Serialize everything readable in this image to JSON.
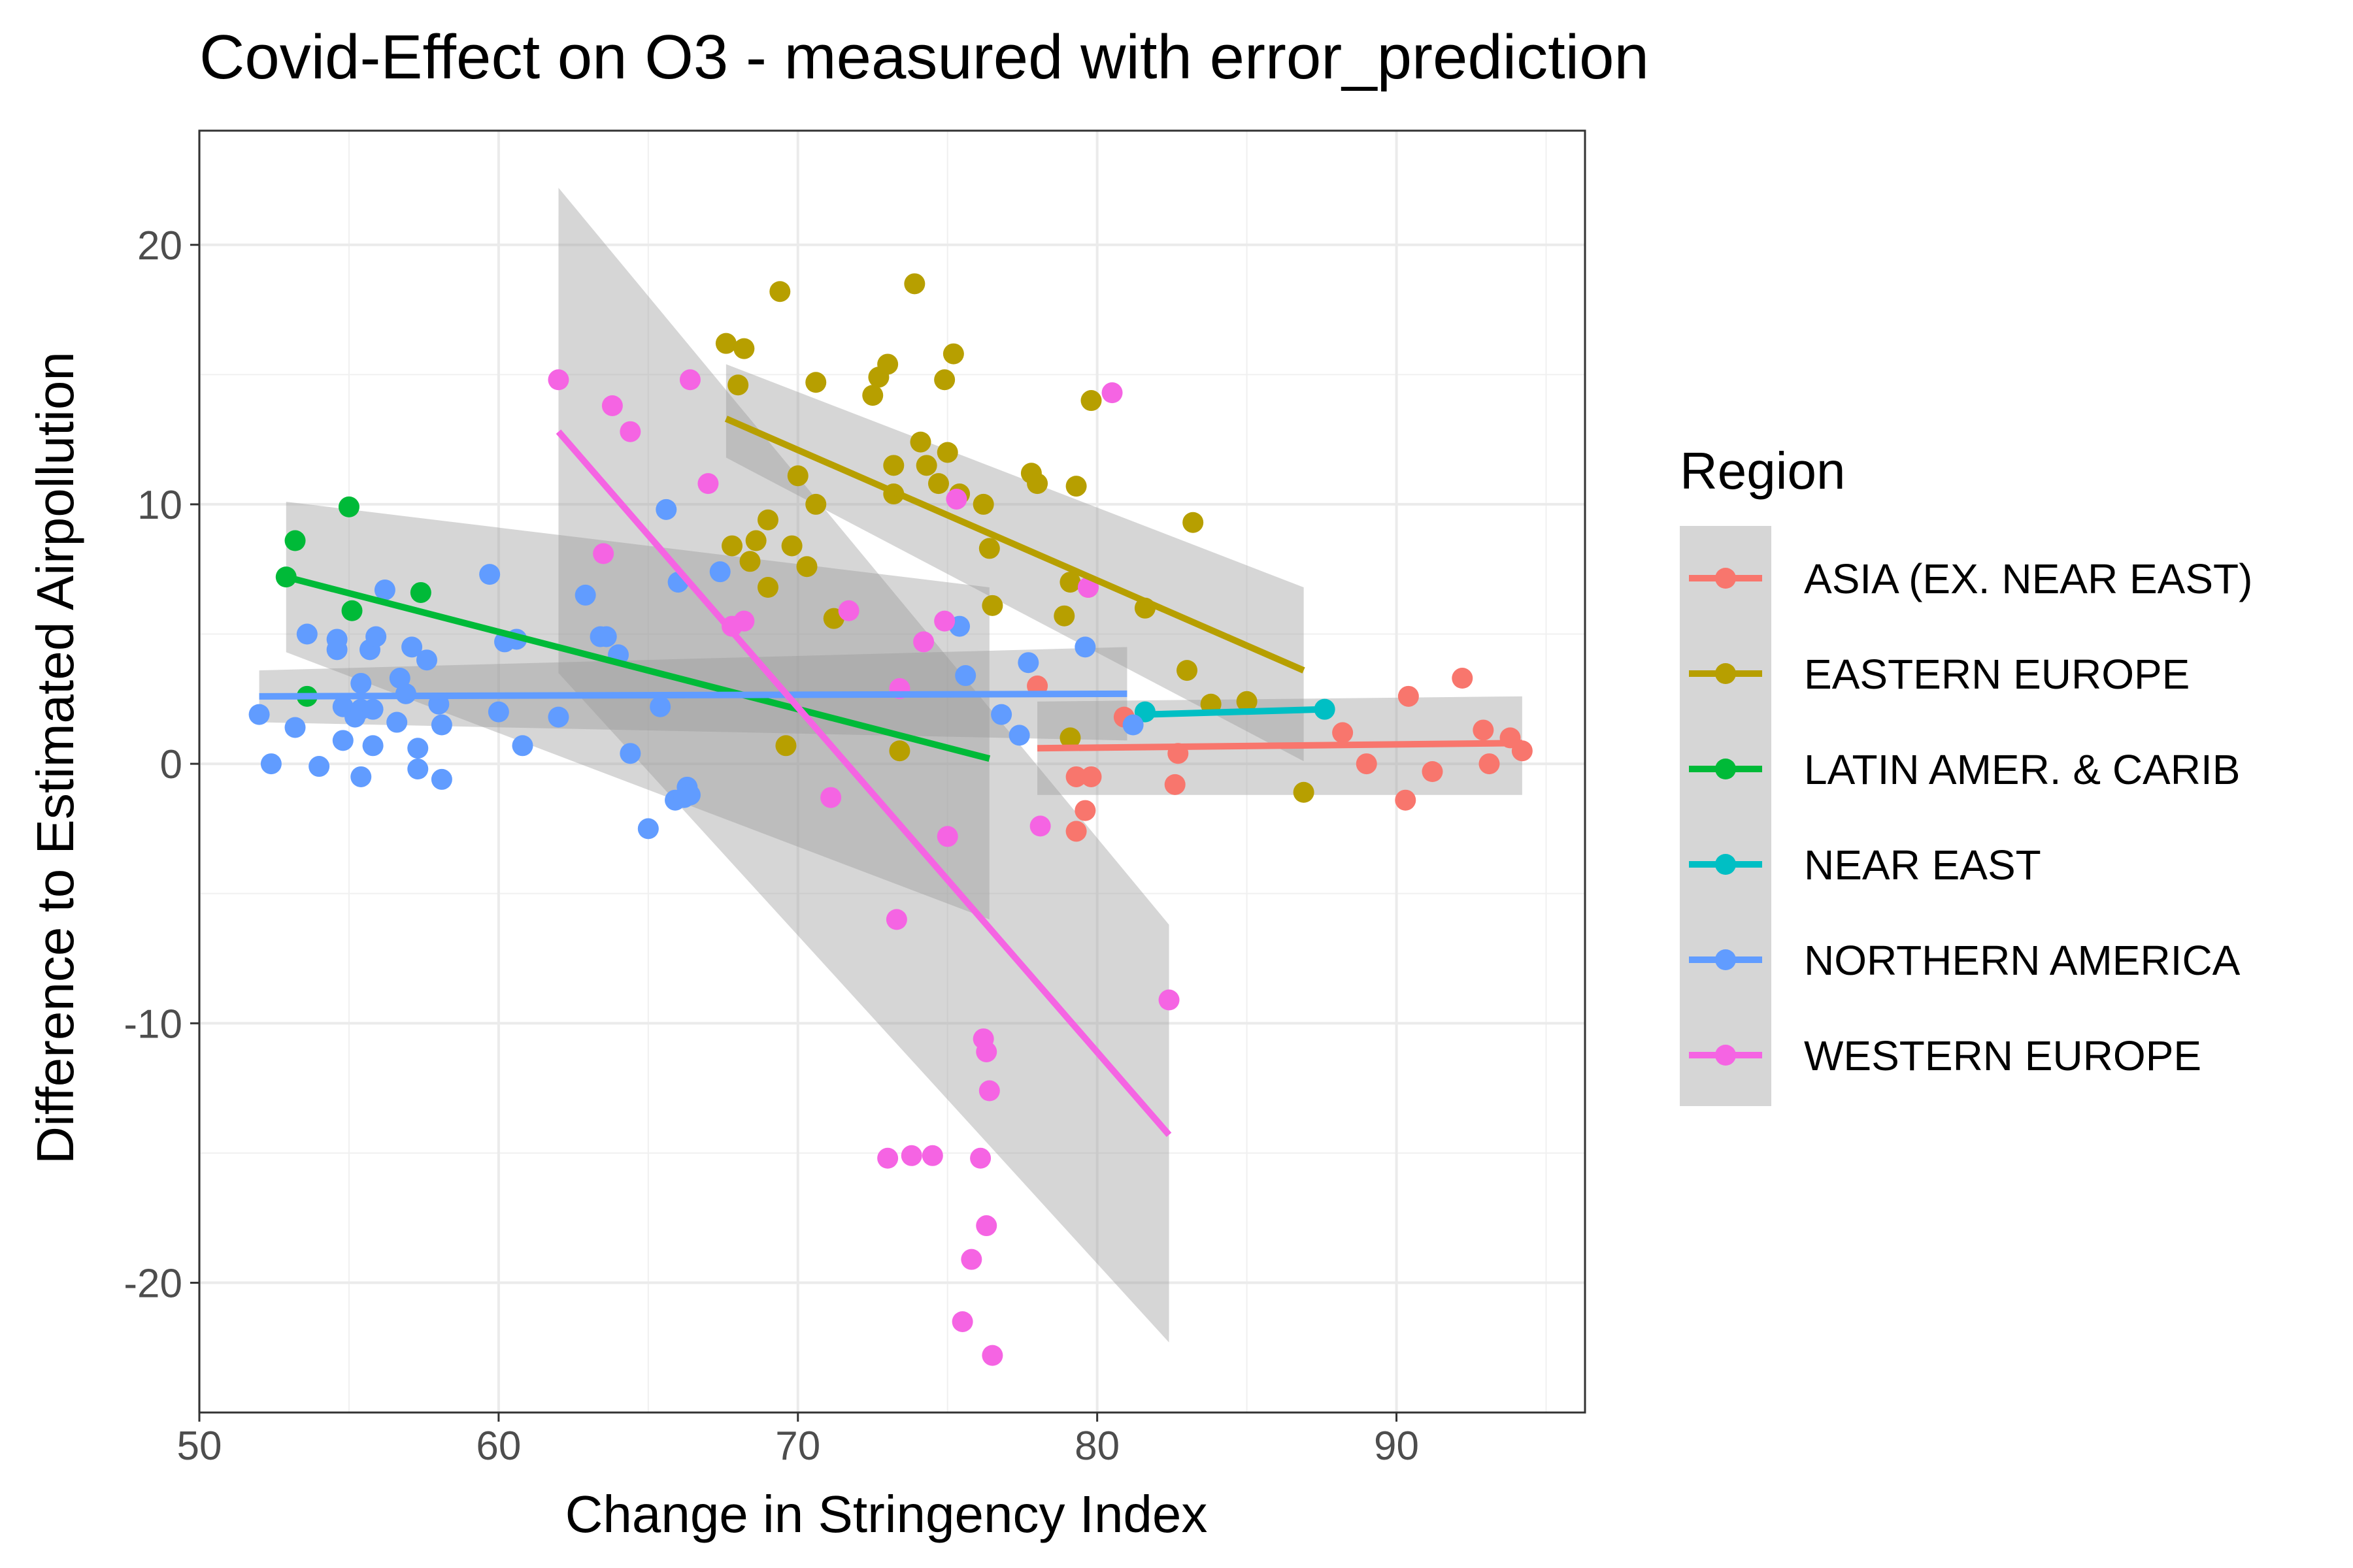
{
  "chart_data": {
    "type": "scatter",
    "title": "Covid-Effect on O3 - measured with error_prediction",
    "xlabel": "Change in Stringency Index",
    "ylabel": "Difference to Estimated Airpollution",
    "xlim": [
      50,
      96.3
    ],
    "ylim": [
      -25,
      24.4
    ],
    "xticks": [
      50,
      60,
      70,
      80,
      90
    ],
    "yticks": [
      -20,
      -10,
      0,
      10,
      20
    ],
    "grid": true,
    "legend": {
      "title": "Region",
      "position": "right"
    },
    "series": [
      {
        "name": "ASIA (EX. NEAR EAST)",
        "color": "#F8766D",
        "points": [
          [
            78.0,
            3.0
          ],
          [
            79.3,
            -0.5
          ],
          [
            79.3,
            -2.6
          ],
          [
            79.6,
            -1.8
          ],
          [
            79.7,
            6.8
          ],
          [
            79.8,
            -0.5
          ],
          [
            80.9,
            1.8
          ],
          [
            82.6,
            -0.8
          ],
          [
            82.7,
            0.4
          ],
          [
            88.2,
            1.2
          ],
          [
            89.0,
            0.0
          ],
          [
            90.3,
            -1.4
          ],
          [
            90.4,
            2.6
          ],
          [
            91.2,
            -0.3
          ],
          [
            92.2,
            3.3
          ],
          [
            92.9,
            1.3
          ],
          [
            93.1,
            0.0
          ],
          [
            93.8,
            1.0
          ],
          [
            94.2,
            0.5
          ]
        ],
        "fit": {
          "x": [
            78.0,
            94.2
          ],
          "y": [
            0.6,
            0.8
          ],
          "lower": [
            -1.2,
            -1.2
          ],
          "upper": [
            2.4,
            2.6
          ]
        }
      },
      {
        "name": "EASTERN EUROPE",
        "color": "#B79F00",
        "points": [
          [
            67.6,
            16.2
          ],
          [
            67.8,
            8.4
          ],
          [
            68.0,
            14.6
          ],
          [
            68.2,
            16.0
          ],
          [
            68.4,
            7.8
          ],
          [
            68.6,
            8.6
          ],
          [
            69.0,
            9.4
          ],
          [
            69.0,
            6.8
          ],
          [
            69.4,
            18.2
          ],
          [
            69.6,
            0.7
          ],
          [
            69.8,
            8.4
          ],
          [
            70.0,
            11.1
          ],
          [
            70.3,
            7.6
          ],
          [
            70.6,
            10.0
          ],
          [
            70.6,
            14.7
          ],
          [
            71.2,
            5.6
          ],
          [
            72.5,
            14.2
          ],
          [
            72.7,
            14.9
          ],
          [
            73.0,
            15.4
          ],
          [
            73.2,
            11.5
          ],
          [
            73.2,
            10.4
          ],
          [
            73.4,
            0.5
          ],
          [
            73.9,
            18.5
          ],
          [
            74.1,
            12.4
          ],
          [
            74.3,
            11.5
          ],
          [
            74.7,
            10.8
          ],
          [
            74.9,
            14.8
          ],
          [
            75.0,
            12.0
          ],
          [
            75.2,
            15.8
          ],
          [
            75.4,
            10.4
          ],
          [
            76.2,
            10.0
          ],
          [
            76.4,
            8.3
          ],
          [
            76.5,
            6.1
          ],
          [
            77.8,
            11.2
          ],
          [
            78.0,
            10.8
          ],
          [
            78.9,
            5.7
          ],
          [
            79.1,
            7.0
          ],
          [
            79.1,
            1.0
          ],
          [
            79.3,
            10.7
          ],
          [
            79.8,
            14.0
          ],
          [
            81.6,
            6.0
          ],
          [
            83.0,
            3.6
          ],
          [
            83.2,
            9.3
          ],
          [
            83.8,
            2.3
          ],
          [
            85.0,
            2.4
          ],
          [
            86.9,
            -1.1
          ]
        ],
        "fit": {
          "x": [
            67.6,
            86.9
          ],
          "y": [
            13.3,
            3.6
          ],
          "lower": [
            11.8,
            0.1
          ],
          "upper": [
            15.4,
            6.8
          ]
        }
      },
      {
        "name": "LATIN AMER. & CARIB",
        "color": "#00BA38",
        "points": [
          [
            52.9,
            7.2
          ],
          [
            53.2,
            8.6
          ],
          [
            53.6,
            2.6
          ],
          [
            55.0,
            9.9
          ],
          [
            55.1,
            5.9
          ],
          [
            57.4,
            6.6
          ]
        ],
        "fit": {
          "x": [
            52.9,
            76.4
          ],
          "y": [
            7.2,
            0.2
          ],
          "lower": [
            4.3,
            -6.0
          ],
          "upper": [
            10.1,
            6.8
          ]
        }
      },
      {
        "name": "NEAR EAST",
        "color": "#00BFC4",
        "points": [
          [
            81.6,
            2.0
          ],
          [
            87.6,
            2.1
          ]
        ],
        "fit": {
          "x": [
            81.6,
            87.6
          ],
          "y": [
            1.9,
            2.1
          ]
        }
      },
      {
        "name": "NORTHERN AMERICA",
        "color": "#619CFF",
        "points": [
          [
            52.0,
            1.9
          ],
          [
            52.4,
            0.0
          ],
          [
            53.2,
            1.4
          ],
          [
            53.6,
            5.0
          ],
          [
            54.0,
            -0.1
          ],
          [
            54.6,
            4.8
          ],
          [
            54.6,
            4.4
          ],
          [
            54.8,
            2.2
          ],
          [
            54.8,
            0.9
          ],
          [
            55.2,
            1.8
          ],
          [
            55.4,
            3.1
          ],
          [
            55.4,
            2.1
          ],
          [
            55.4,
            -0.5
          ],
          [
            55.7,
            4.4
          ],
          [
            55.8,
            0.7
          ],
          [
            55.8,
            2.1
          ],
          [
            55.9,
            4.9
          ],
          [
            56.2,
            6.7
          ],
          [
            56.6,
            1.6
          ],
          [
            56.7,
            3.3
          ],
          [
            56.9,
            2.7
          ],
          [
            57.1,
            4.5
          ],
          [
            57.3,
            -0.2
          ],
          [
            57.3,
            0.6
          ],
          [
            57.6,
            4.0
          ],
          [
            58.0,
            2.3
          ],
          [
            58.1,
            1.5
          ],
          [
            58.1,
            -0.6
          ],
          [
            59.7,
            7.3
          ],
          [
            60.0,
            2.0
          ],
          [
            60.2,
            4.7
          ],
          [
            60.6,
            4.8
          ],
          [
            60.8,
            0.7
          ],
          [
            62.0,
            1.8
          ],
          [
            62.9,
            6.5
          ],
          [
            63.4,
            4.9
          ],
          [
            63.6,
            4.9
          ],
          [
            64.0,
            4.2
          ],
          [
            64.4,
            0.4
          ],
          [
            65.0,
            -2.5
          ],
          [
            65.4,
            2.2
          ],
          [
            65.6,
            9.8
          ],
          [
            66.0,
            7.0
          ],
          [
            65.9,
            -1.4
          ],
          [
            66.2,
            -1.3
          ],
          [
            66.3,
            -0.9
          ],
          [
            66.4,
            -1.2
          ],
          [
            67.4,
            7.4
          ],
          [
            75.4,
            5.3
          ],
          [
            75.6,
            3.4
          ],
          [
            76.8,
            1.9
          ],
          [
            77.4,
            1.1
          ],
          [
            77.7,
            3.9
          ],
          [
            79.6,
            4.5
          ],
          [
            81.2,
            1.5
          ]
        ],
        "fit": {
          "x": [
            52.0,
            81.0
          ],
          "y": [
            2.6,
            2.7
          ],
          "lower": [
            1.6,
            0.9
          ],
          "upper": [
            3.6,
            4.5
          ]
        }
      },
      {
        "name": "WESTERN EUROPE",
        "color": "#F564E3",
        "points": [
          [
            62.0,
            14.8
          ],
          [
            63.5,
            8.1
          ],
          [
            63.8,
            13.8
          ],
          [
            64.4,
            12.8
          ],
          [
            66.4,
            14.8
          ],
          [
            67.0,
            10.8
          ],
          [
            67.8,
            5.3
          ],
          [
            68.2,
            5.5
          ],
          [
            71.1,
            -1.3
          ],
          [
            71.7,
            5.9
          ],
          [
            73.0,
            -15.2
          ],
          [
            73.3,
            -6.0
          ],
          [
            73.4,
            2.9
          ],
          [
            73.8,
            -15.1
          ],
          [
            74.2,
            4.7
          ],
          [
            74.5,
            -15.1
          ],
          [
            74.9,
            5.5
          ],
          [
            75.0,
            -2.8
          ],
          [
            75.3,
            10.2
          ],
          [
            75.5,
            -21.5
          ],
          [
            75.8,
            -19.1
          ],
          [
            76.1,
            -15.2
          ],
          [
            76.2,
            -10.6
          ],
          [
            76.3,
            -11.1
          ],
          [
            76.3,
            -17.8
          ],
          [
            76.4,
            -12.6
          ],
          [
            76.5,
            -22.8
          ],
          [
            78.1,
            -2.4
          ],
          [
            79.7,
            6.8
          ],
          [
            80.5,
            14.3
          ],
          [
            82.4,
            -9.1
          ]
        ],
        "fit": {
          "x": [
            62.0,
            82.4
          ],
          "y": [
            12.8,
            -14.3
          ],
          "lower": [
            3.5,
            -22.3
          ],
          "upper": [
            22.2,
            -6.2
          ]
        }
      }
    ]
  }
}
